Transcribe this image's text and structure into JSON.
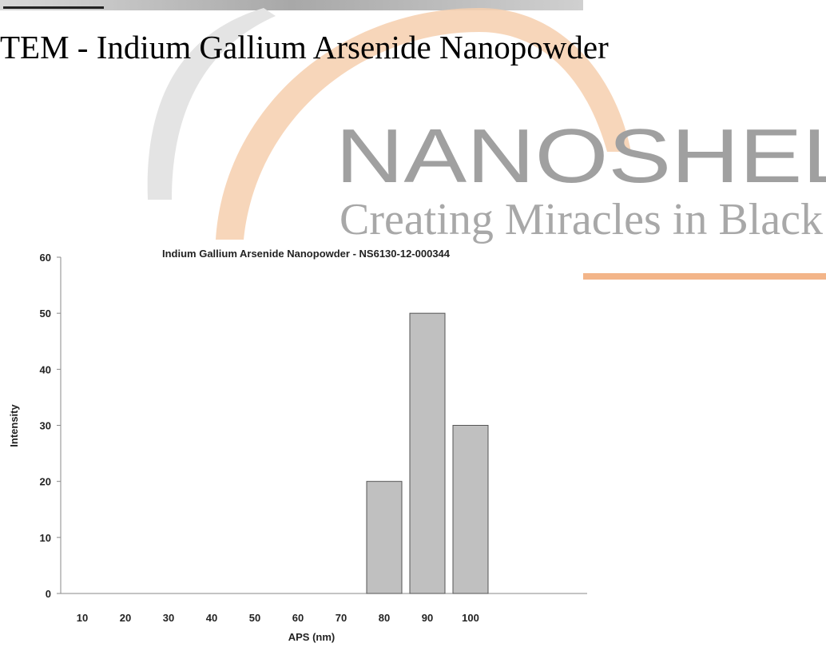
{
  "heading": "TEM - Indium Gallium Arsenide Nanopowder",
  "watermark": {
    "brand": "NANOSHEL",
    "tagline": "Creating Miracles in Black"
  },
  "chart_data": {
    "type": "bar",
    "title": "Indium Gallium Arsenide Nanopowder - NS6130-12-000344",
    "x_label": "APS (nm)",
    "y_label": "Intensity",
    "categories": [
      "10",
      "20",
      "30",
      "40",
      "50",
      "60",
      "70",
      "80",
      "90",
      "100"
    ],
    "values": [
      0,
      0,
      0,
      0,
      0,
      0,
      0,
      20,
      50,
      30
    ],
    "color": "#c0c0c0",
    "ylim": [
      0,
      60
    ],
    "yticks": [
      0,
      10,
      20,
      30,
      40,
      50,
      60
    ]
  }
}
